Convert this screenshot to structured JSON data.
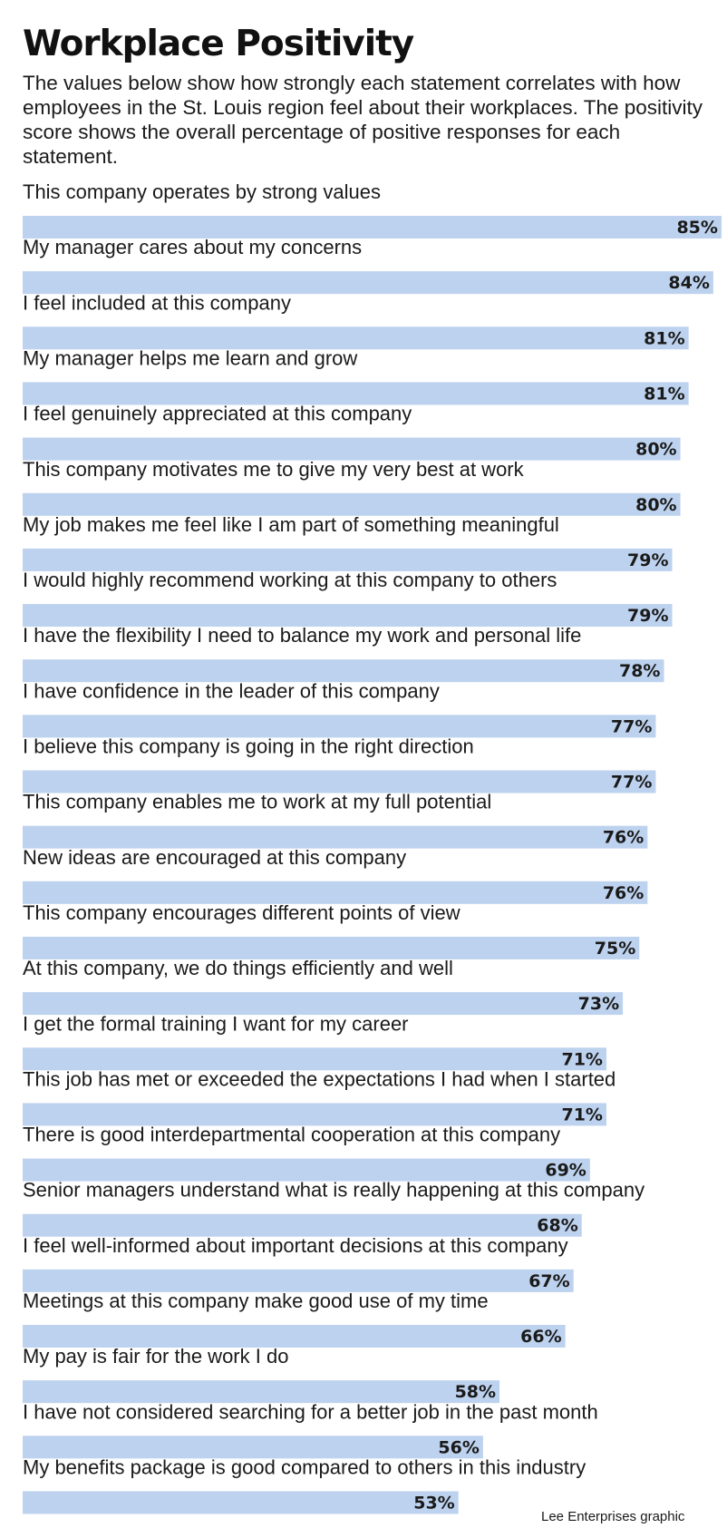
{
  "header": {
    "title": "Workplace Positivity",
    "subtitle": "The values below show how strongly each statement correlates with how employees in the St. Louis region feel about their workplaces. The positivity score shows the overall percentage of positive responses for each statement."
  },
  "credit": "Lee Enterprises graphic",
  "colors": {
    "bar": "#bdd2ee",
    "text": "#1a1a1a"
  },
  "chart_data": {
    "type": "bar",
    "orientation": "horizontal",
    "value_unit": "%",
    "xlim": [
      0,
      100
    ],
    "grid": false,
    "categories": [
      "This company operates by strong values",
      "My manager cares about my concerns",
      "I feel included at this company",
      "My manager helps me learn and grow",
      "I feel genuinely appreciated at this company",
      "This company motivates me to give my very best at work",
      "My job makes me feel like I am part of something meaningful",
      "I would highly recommend working at this company to others",
      "I have the flexibility I need to balance my work and personal life",
      "I have confidence in the leader of this company",
      "I believe this company is going in the right direction",
      "This company enables me to work at my full potential",
      "New ideas are encouraged at this company",
      "This company encourages different points of view",
      "At this company, we do things efficiently and well",
      "I get the formal training I want for my career",
      "This job has met or exceeded the expectations I had when I started",
      "There is good interdepartmental cooperation at this company",
      "Senior managers understand what is really happening at this company",
      "I feel well-informed about important decisions at this company",
      "Meetings at this company make good use of my time",
      "My pay is fair for the work I do",
      "I have not considered searching for a better job in the past month",
      "My benefits package is good compared to others in this industry"
    ],
    "values": [
      85,
      84,
      81,
      81,
      80,
      80,
      79,
      79,
      78,
      77,
      77,
      76,
      76,
      75,
      73,
      71,
      71,
      69,
      68,
      67,
      66,
      58,
      56,
      53
    ],
    "data_labels": [
      "85%",
      "84%",
      "81%",
      "81%",
      "80%",
      "80%",
      "79%",
      "79%",
      "78%",
      "77%",
      "77%",
      "76%",
      "76%",
      "75%",
      "73%",
      "71%",
      "71%",
      "69%",
      "68%",
      "67%",
      "66%",
      "58%",
      "56%",
      "53%"
    ]
  }
}
